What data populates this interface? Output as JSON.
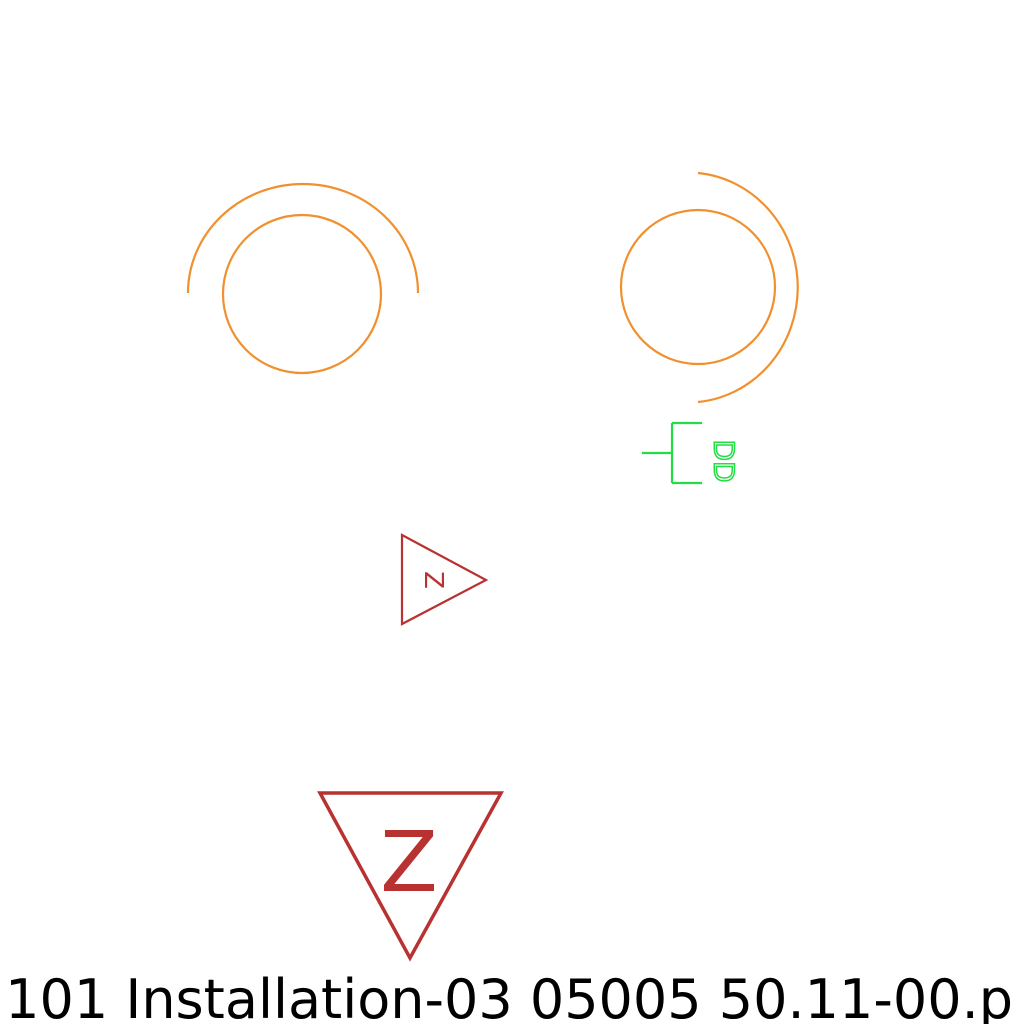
{
  "colors": {
    "background": "#ffffff",
    "arc": "#f0902f",
    "connector": "#22dd44",
    "triangle": "#b83232",
    "caption": "#000000"
  },
  "symbols": {
    "small_triangle_letter": "Z",
    "large_triangle_letter": "Z",
    "connector_label": "DD"
  },
  "caption": ".101  Installation-03  05005  50.11-00.p"
}
